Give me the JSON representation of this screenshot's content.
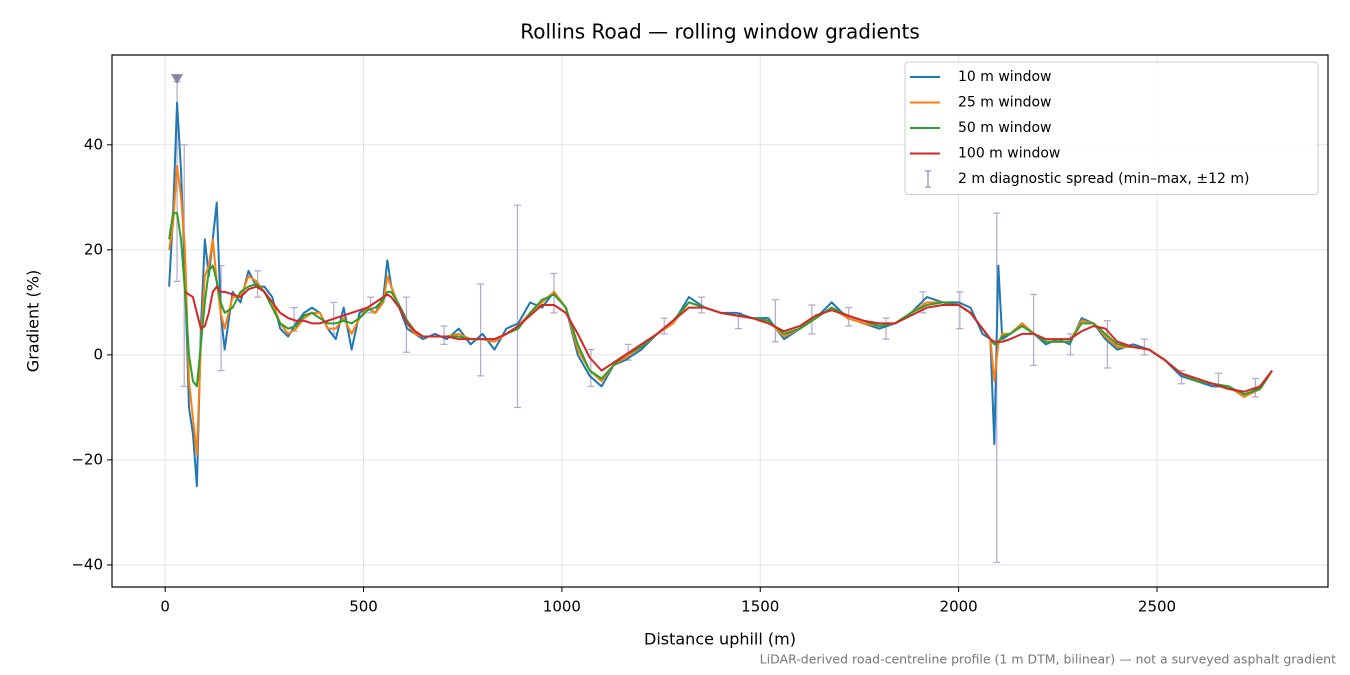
{
  "chart_data": {
    "type": "line",
    "title": "Rollins Road — rolling window gradients",
    "xlabel": "Distance uphill (m)",
    "ylabel": "Gradient (%)",
    "note": "LiDAR-derived road-centreline profile (1 m DTM, bilinear) — not a surveyed asphalt gradient",
    "xlim": [
      -134,
      2931
    ],
    "ylim": [
      -44.2,
      57.1
    ],
    "xticks": [
      0,
      500,
      1000,
      1500,
      2000,
      2500
    ],
    "yticks": [
      {
        "value": -40,
        "label": "−40"
      },
      {
        "value": -20,
        "label": "−20"
      },
      0,
      20,
      40
    ],
    "grid": true,
    "legend": "upper right",
    "x": [
      10,
      20,
      30,
      40,
      50,
      60,
      70,
      80,
      90,
      100,
      110,
      120,
      130,
      140,
      150,
      170,
      190,
      210,
      230,
      250,
      270,
      290,
      310,
      330,
      350,
      370,
      390,
      410,
      430,
      450,
      470,
      490,
      510,
      530,
      550,
      560,
      570,
      590,
      610,
      630,
      650,
      680,
      710,
      740,
      770,
      800,
      830,
      860,
      890,
      920,
      950,
      980,
      1010,
      1040,
      1070,
      1100,
      1130,
      1160,
      1200,
      1240,
      1280,
      1320,
      1360,
      1400,
      1440,
      1480,
      1520,
      1560,
      1600,
      1640,
      1680,
      1720,
      1760,
      1800,
      1840,
      1880,
      1920,
      1960,
      2000,
      2030,
      2060,
      2080,
      2090,
      2100,
      2110,
      2130,
      2160,
      2190,
      2220,
      2250,
      2280,
      2310,
      2340,
      2370,
      2400,
      2440,
      2480,
      2520,
      2560,
      2600,
      2640,
      2680,
      2720,
      2760,
      2790
    ],
    "series": [
      {
        "name": "10 m window",
        "color": "#1f77b4",
        "values": [
          13,
          27,
          48,
          35,
          15,
          -10,
          -15,
          -25,
          5,
          22,
          15,
          22,
          29,
          8,
          1,
          12,
          10,
          16,
          13,
          13,
          11,
          5,
          3.5,
          6,
          8,
          9,
          8,
          5,
          3,
          9,
          1,
          8,
          9,
          8,
          11,
          18,
          13,
          9,
          5,
          4,
          3,
          4,
          3,
          5,
          2,
          4,
          1,
          5,
          6,
          10,
          9,
          12,
          9,
          0,
          -4,
          -6,
          -2,
          -1,
          1,
          4,
          6,
          11,
          9,
          8,
          8,
          7,
          7,
          3,
          5,
          7,
          10,
          7,
          6,
          5,
          6,
          8,
          11,
          10,
          10,
          9,
          4,
          3,
          -17,
          17,
          3,
          4,
          6,
          4,
          2,
          3,
          2,
          7,
          6,
          3,
          1,
          2,
          1,
          -1,
          -4,
          -5,
          -6,
          -6,
          -8,
          -6,
          -3
        ]
      },
      {
        "name": "25 m window",
        "color": "#ff7f0e",
        "values": [
          20,
          25,
          36,
          30,
          20,
          -5,
          -12,
          -19,
          2,
          15,
          17,
          22,
          14,
          8,
          5,
          11,
          11,
          15,
          14,
          12,
          10,
          6,
          4,
          5,
          7,
          8,
          8,
          5,
          5,
          7,
          4,
          7,
          9,
          8,
          10,
          15,
          13,
          9,
          6,
          4,
          3.5,
          3.5,
          3.5,
          4,
          3,
          3,
          2.5,
          4,
          5.5,
          8,
          10,
          12,
          9,
          1,
          -3,
          -5,
          -2,
          -0.5,
          1.5,
          4,
          6,
          10,
          9,
          8,
          7.5,
          7,
          6.5,
          3.5,
          5,
          7,
          9,
          7,
          6,
          5.5,
          6,
          8,
          10,
          10,
          9.5,
          8,
          5,
          3,
          -5,
          2,
          4,
          4,
          6,
          4,
          2.5,
          2.5,
          2.5,
          6.5,
          6,
          3.5,
          1.5,
          1.5,
          1,
          -1,
          -3.5,
          -5,
          -5.5,
          -6,
          -8,
          -6.5,
          -3
        ]
      },
      {
        "name": "50 m window",
        "color": "#2ca02c",
        "values": [
          22,
          27,
          27,
          22,
          12,
          0,
          -5,
          -6,
          2,
          10,
          16,
          17,
          14,
          10,
          8,
          9,
          12,
          13,
          13.5,
          12,
          9,
          6,
          5,
          5.5,
          7.5,
          8,
          7,
          6,
          6,
          6.5,
          6,
          7,
          8.5,
          9,
          10.5,
          12,
          12,
          9.5,
          6.5,
          4.5,
          3.5,
          3.5,
          3.5,
          3.5,
          3,
          3,
          3,
          4,
          5,
          8,
          10.5,
          11.5,
          9,
          2,
          -3,
          -4.5,
          -2,
          0,
          1.5,
          4,
          6.5,
          10,
          9,
          8,
          7.5,
          7,
          6.5,
          4,
          5,
          7,
          9,
          7.5,
          6.5,
          5.5,
          6,
          8,
          9.5,
          10,
          9.5,
          8,
          5,
          3,
          2,
          2.5,
          3.5,
          4,
          5.5,
          4,
          2.5,
          2.5,
          2.5,
          6,
          6,
          4,
          2,
          1.5,
          1,
          -1,
          -3.5,
          -5,
          -5.5,
          -6,
          -7.5,
          -6.5,
          -3
        ]
      },
      {
        "name": "100 m window",
        "color": "#d62728",
        "values": [
          null,
          null,
          null,
          null,
          12,
          11.5,
          11,
          8,
          5,
          5.5,
          8,
          12,
          13,
          12,
          12,
          11.5,
          11,
          12.5,
          13,
          12,
          10,
          8,
          7,
          6.5,
          6.5,
          6,
          6,
          6.5,
          7,
          7.5,
          8,
          8.5,
          9,
          10,
          11,
          11.5,
          11,
          9,
          6,
          4.5,
          3.5,
          3.5,
          3.5,
          3,
          3,
          3,
          3,
          4,
          5.5,
          7.5,
          9.5,
          9.5,
          8,
          4,
          -0.5,
          -3,
          -1.5,
          0,
          2,
          4,
          6.5,
          9,
          9,
          8,
          7.5,
          7,
          6,
          4.5,
          5.5,
          7.5,
          8.5,
          7.5,
          6.5,
          6,
          6,
          7.5,
          9,
          9.5,
          9.5,
          8,
          5,
          3,
          2.5,
          2.5,
          2.5,
          3,
          4,
          4,
          3,
          3,
          3,
          4.5,
          5.5,
          5,
          2.5,
          1.5,
          1,
          -1,
          -3.5,
          -4.5,
          -5.5,
          -6.5,
          -7,
          -6,
          -3
        ]
      }
    ],
    "errorbars": {
      "name": "2 m diagnostic spread (min–max, ±12 m)",
      "color": "#a49ac6",
      "x": [
        30,
        48,
        141,
        233,
        325,
        425,
        518,
        608,
        703,
        795,
        888,
        980,
        1073,
        1167,
        1258,
        1352,
        1445,
        1538,
        1630,
        1723,
        1817,
        1910,
        2003,
        2096,
        2189,
        2282,
        2375,
        2468,
        2562,
        2655,
        2748
      ],
      "low": [
        14,
        -6,
        -3,
        11,
        4.5,
        4,
        8,
        0.5,
        2,
        -4,
        -10,
        8,
        -6,
        -1,
        4,
        8,
        5,
        2.5,
        4,
        5.5,
        3,
        8,
        5,
        -39.5,
        -2,
        0,
        -2.5,
        0,
        -5.5,
        -6,
        -8
      ],
      "high": [
        52,
        40,
        17,
        16,
        9,
        10,
        11,
        11,
        5.5,
        13.5,
        28.5,
        15.5,
        1,
        2,
        7,
        11,
        8,
        10.5,
        9.5,
        9,
        7,
        12,
        12,
        27,
        11.5,
        4,
        6.5,
        3,
        -3,
        -3.5,
        -4.5
      ]
    },
    "markers": {
      "color": "#8b80a8",
      "x": [
        30
      ],
      "y": [
        52.5
      ]
    }
  }
}
